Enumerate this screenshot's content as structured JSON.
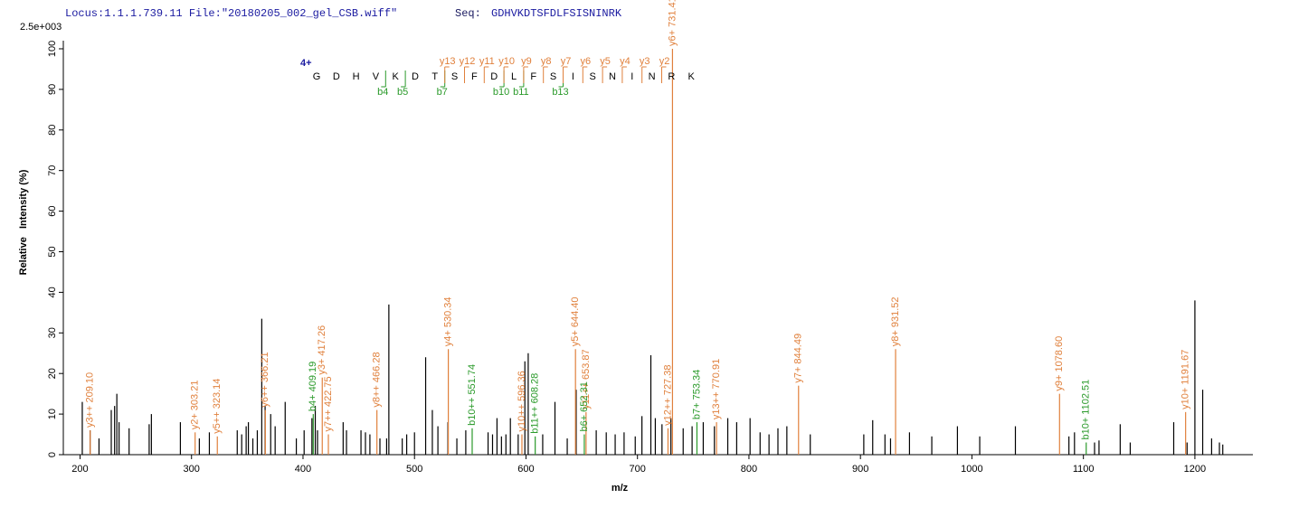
{
  "chart_data": {
    "type": "spectrum",
    "title": "Locus:1.1.1.739.11 File:\"20180205_002_gel_CSB.wiff\"",
    "seq_label": "Seq:",
    "sequence": "GDHVKDTSFDLFSISNINRK",
    "scale_label": "2.5e+003",
    "x_label": "m/z",
    "y_label": "Relative   Intensity (%)",
    "xlim": [
      185,
      1252
    ],
    "ylim": [
      0,
      102
    ],
    "xticks": [
      200,
      300,
      400,
      500,
      600,
      700,
      800,
      900,
      1000,
      1100,
      1200
    ],
    "yticks": [
      0,
      10,
      20,
      30,
      40,
      50,
      60,
      70,
      80,
      90,
      100
    ],
    "axis_color": "#000000",
    "peaks": {
      "color": "#000000",
      "mz": [
        202,
        209,
        217,
        228,
        231,
        233,
        235,
        244,
        262,
        264,
        290,
        307,
        316,
        341,
        345,
        349,
        351,
        355,
        359,
        363,
        366,
        371,
        375,
        384,
        394,
        401,
        408,
        411,
        413,
        436,
        439,
        452,
        456,
        460,
        469,
        475,
        477,
        489,
        493,
        500,
        510,
        516,
        521,
        530,
        538,
        546,
        566,
        570,
        574,
        578,
        582,
        586,
        593,
        599,
        602,
        615,
        626,
        637,
        645,
        663,
        672,
        680,
        688,
        698,
        704,
        712,
        716,
        722,
        730,
        741,
        749,
        759,
        769,
        781,
        789,
        801,
        810,
        818,
        826,
        834,
        855,
        903,
        911,
        922,
        927,
        944,
        964,
        987,
        1007,
        1039,
        1087,
        1092,
        1110,
        1114,
        1133,
        1142,
        1181,
        1193,
        1200,
        1207,
        1215,
        1222,
        1225
      ],
      "intensity": [
        13,
        6,
        4,
        11,
        12,
        15,
        8,
        6.5,
        7.5,
        10,
        8,
        4,
        5.5,
        6,
        5,
        7,
        8,
        4,
        6,
        33.5,
        12,
        10,
        7,
        13,
        4,
        6,
        9,
        12,
        6,
        8,
        6,
        6,
        5.5,
        5,
        4,
        4,
        37,
        4,
        5,
        5.5,
        24,
        11,
        7,
        8,
        4,
        6,
        5.5,
        5,
        9,
        4.5,
        5,
        9,
        5,
        23,
        25,
        5,
        13,
        4,
        16,
        6,
        5.5,
        5,
        5.5,
        4.5,
        9.5,
        24.5,
        9,
        7.5,
        9,
        6.5,
        7,
        8,
        7,
        9,
        8,
        9,
        5.5,
        5,
        6.5,
        7,
        5,
        5,
        8.5,
        5,
        4,
        5.5,
        4.5,
        7,
        4.5,
        7,
        4.5,
        5.5,
        3,
        3.5,
        7.5,
        3,
        8,
        3,
        38,
        16,
        4,
        3,
        2.5
      ]
    },
    "annotations": [
      {
        "color": "#e0803c",
        "mz": [
          209.1,
          303.21,
          323.14,
          366.21,
          417.26,
          422.75,
          466.28,
          530.34,
          596.36,
          644.4,
          653.87,
          727.38,
          731.41,
          770.91,
          844.49,
          931.52,
          1078.6,
          1191.67
        ],
        "intensity": [
          6,
          5.5,
          4.5,
          11,
          19,
          5,
          11,
          26,
          5,
          26,
          10.5,
          6.5,
          100,
          8,
          17,
          26,
          15,
          10.5
        ],
        "labels": [
          "y3++ 209.10",
          "y2+ 303.21",
          "y5++ 323.14",
          "y6++ 366.21",
          "y3+ 417.26",
          "y7++ 422.75",
          "y8++ 466.28",
          "y4+ 530.34",
          "y10++ 596.36",
          "y5+ 644.40",
          "y11++ 653.87",
          "y12++ 727.38",
          "y6+ 731.41",
          "y13++ 770.91",
          "y7+ 844.49",
          "y8+ 931.52",
          "y9+ 1078.60",
          "y10+ 1191.67"
        ]
      },
      {
        "color": "#2a9a2a",
        "mz": [
          409.19,
          551.74,
          608.28,
          652.31,
          753.34,
          1102.51
        ],
        "intensity": [
          10,
          6.5,
          4.5,
          5,
          8,
          3
        ],
        "labels": [
          "b4+ 409.19",
          "b10++ 551.74",
          "b11++ 608.28",
          "b6+ 652.31",
          "b7+ 753.34",
          "b10+ 1102.51"
        ]
      }
    ],
    "fragment_map": {
      "charge": "4+",
      "letters": [
        "G",
        "D",
        "H",
        "V",
        "K",
        "D",
        "T",
        "S",
        "F",
        "D",
        "L",
        "F",
        "S",
        "I",
        "S",
        "N",
        "I",
        "N",
        "R",
        "K"
      ],
      "above_color": "#e0803c",
      "below_color": "#2a9a2a",
      "above": [
        null,
        null,
        null,
        null,
        null,
        null,
        null,
        "y13",
        "y12",
        "y11",
        "y10",
        "y9",
        "y8",
        "y7",
        "y6",
        "y5",
        "y4",
        "y3",
        "y2",
        null
      ],
      "below": [
        null,
        null,
        null,
        "b4",
        "b5",
        null,
        "b7",
        null,
        null,
        "b10",
        "b11",
        null,
        "b13",
        null,
        null,
        null,
        null,
        null,
        null,
        null
      ]
    }
  }
}
